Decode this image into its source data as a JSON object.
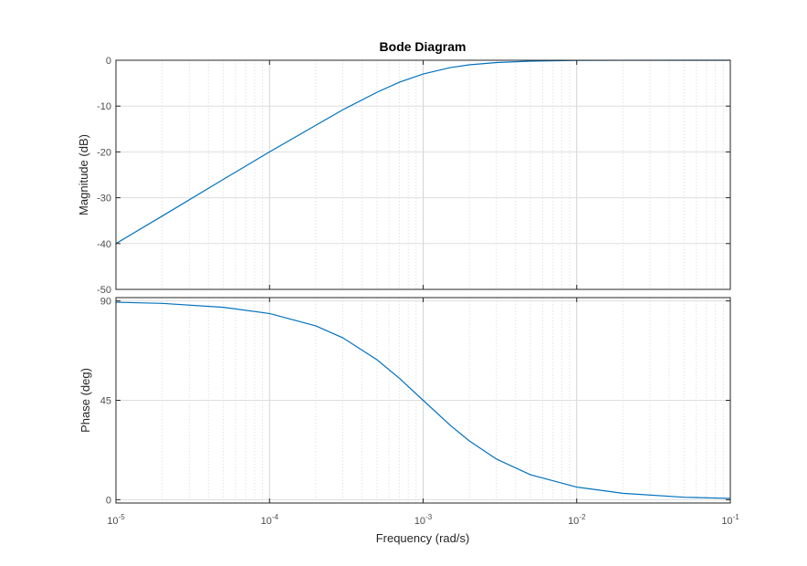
{
  "chart_data": {
    "type": "line",
    "title": "Bode Diagram",
    "xlabel": "Frequency  (rad/s)",
    "xscale": "log",
    "xlim": [
      1e-05,
      0.1
    ],
    "x_ticks": [
      {
        "base": "10",
        "exp": "-5"
      },
      {
        "base": "10",
        "exp": "-4"
      },
      {
        "base": "10",
        "exp": "-3"
      },
      {
        "base": "10",
        "exp": "-2"
      },
      {
        "base": "10",
        "exp": "-1"
      }
    ],
    "grid": true,
    "line_color": "#0072bd",
    "magnitude": {
      "ylabel": "Magnitude (dB)",
      "ylim": [
        -50,
        0
      ],
      "y_ticks": [
        "0",
        "-10",
        "-20",
        "-30",
        "-40",
        "-50"
      ],
      "series": [
        {
          "x": [
            1e-05,
            2e-05,
            5e-05,
            0.0001,
            0.0002,
            0.0003,
            0.0005,
            0.0007,
            0.001,
            0.0015,
            0.002,
            0.003,
            0.005,
            0.01,
            0.02,
            0.05,
            0.1
          ],
          "y": [
            -40.0,
            -34.0,
            -26.0,
            -20.0,
            -14.2,
            -10.8,
            -7.0,
            -4.8,
            -3.0,
            -1.6,
            -1.0,
            -0.5,
            -0.2,
            -0.04,
            -0.01,
            0.0,
            0.0
          ]
        }
      ]
    },
    "phase": {
      "ylabel": "Phase (deg)",
      "ylim": [
        -1.5,
        91.5
      ],
      "y_ticks": [
        "90",
        "45",
        "0"
      ],
      "series": [
        {
          "x": [
            1e-05,
            2e-05,
            5e-05,
            0.0001,
            0.0002,
            0.0003,
            0.0005,
            0.0007,
            0.001,
            0.0015,
            0.002,
            0.003,
            0.005,
            0.01,
            0.02,
            0.05,
            0.1
          ],
          "y": [
            89.4,
            88.9,
            87.1,
            84.3,
            78.7,
            73.3,
            63.4,
            55.0,
            45.0,
            33.7,
            26.6,
            18.4,
            11.3,
            5.7,
            2.9,
            1.1,
            0.6
          ]
        }
      ]
    }
  }
}
